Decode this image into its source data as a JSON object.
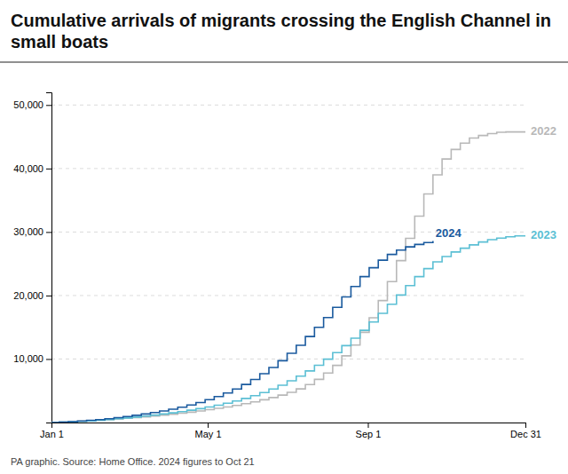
{
  "chart_data": {
    "type": "step",
    "title": "Cumulative arrivals of migrants crossing the English Channel in small boats",
    "caption": "PA graphic. Source: Home Office. 2024 figures to Oct 21",
    "x": [
      1,
      7,
      14,
      21,
      28,
      35,
      42,
      49,
      56,
      63,
      70,
      77,
      84,
      91,
      98,
      105,
      112,
      119,
      126,
      133,
      140,
      147,
      154,
      161,
      168,
      175,
      182,
      189,
      196,
      203,
      210,
      217,
      224,
      231,
      238,
      245,
      252,
      259,
      266,
      273,
      280,
      287,
      294,
      301,
      308,
      315,
      322,
      329,
      336,
      343,
      350,
      357,
      365
    ],
    "series": [
      {
        "name": "2022",
        "color": "#b8b8b8",
        "values": [
          0,
          60,
          130,
          200,
          280,
          370,
          460,
          560,
          660,
          770,
          890,
          1010,
          1150,
          1300,
          1460,
          1630,
          1820,
          2020,
          2230,
          2450,
          2700,
          2970,
          3260,
          3580,
          3930,
          4320,
          4750,
          5300,
          5980,
          6800,
          7800,
          9000,
          10500,
          12200,
          14200,
          16500,
          19200,
          22200,
          25500,
          29000,
          32500,
          36000,
          39000,
          41500,
          43000,
          44000,
          44800,
          45200,
          45500,
          45700,
          45756,
          45756,
          45756
        ]
      },
      {
        "name": "2023",
        "color": "#5bbfd4",
        "values": [
          0,
          50,
          110,
          180,
          260,
          360,
          470,
          590,
          720,
          860,
          1010,
          1170,
          1340,
          1520,
          1720,
          1940,
          2180,
          2440,
          2730,
          3050,
          3400,
          3790,
          4230,
          4720,
          5270,
          5880,
          6560,
          7310,
          8130,
          9020,
          9980,
          11010,
          12110,
          13280,
          14520,
          15830,
          17200,
          18620,
          20080,
          21560,
          22980,
          24240,
          25300,
          26150,
          26850,
          27450,
          27980,
          28430,
          28800,
          29050,
          29250,
          29380,
          29437
        ]
      },
      {
        "name": "2024",
        "color": "#1a5a9e",
        "values": [
          0,
          70,
          150,
          240,
          340,
          460,
          600,
          760,
          940,
          1130,
          1340,
          1570,
          1820,
          2100,
          2410,
          2760,
          3150,
          3590,
          4090,
          4650,
          5280,
          5990,
          6790,
          7680,
          8660,
          9730,
          10900,
          12170,
          13540,
          15000,
          16540,
          18140,
          19780,
          21430,
          22980,
          24380,
          25560,
          26470,
          27150,
          27660,
          28050,
          28350,
          28570,
          null,
          null,
          null,
          null,
          null,
          null,
          null,
          null,
          null,
          null
        ]
      }
    ],
    "xlim": [
      1,
      365
    ],
    "xticks": [
      {
        "value": 1,
        "label": "Jan 1"
      },
      {
        "value": 121,
        "label": "May 1"
      },
      {
        "value": 244,
        "label": "Sep 1"
      },
      {
        "value": 365,
        "label": "Dec 31"
      }
    ],
    "ylim": [
      0,
      52000
    ],
    "yticks": [
      {
        "value": 10000,
        "label": "10,000"
      },
      {
        "value": 20000,
        "label": "20,000"
      },
      {
        "value": 30000,
        "label": "30,000"
      },
      {
        "value": 40000,
        "label": "40,000"
      },
      {
        "value": 50000,
        "label": "50,000"
      }
    ],
    "grid": true
  }
}
